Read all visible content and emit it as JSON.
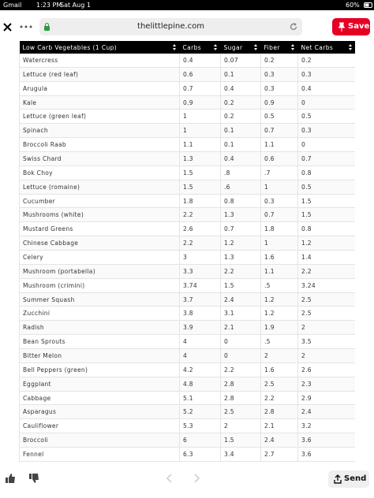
{
  "status_bar": {
    "back_app": "Gmail",
    "time": "1:23 PM",
    "date": "Sat Aug 1",
    "battery": "60%"
  },
  "browser": {
    "url": "thelittlepine.com",
    "save_button": "Save"
  },
  "table": {
    "headers": [
      "Low Carb Vegetables (1 Cup)",
      "Carbs",
      "Sugar",
      "Fiber",
      "Net Carbs"
    ],
    "rows": [
      [
        "Watercress",
        "0.4",
        "0.07",
        "0.2",
        "0.2"
      ],
      [
        "Lettuce (red leaf)",
        "0.6",
        "0.1",
        "0.3",
        "0.3"
      ],
      [
        "Arugula",
        "0.7",
        "0.4",
        "0.3",
        "0.4"
      ],
      [
        "Kale",
        "0.9",
        "0.2",
        "0.9",
        "0"
      ],
      [
        "Lettuce (green leaf)",
        "1",
        "0.2",
        "0.5",
        "0.5"
      ],
      [
        "Spinach",
        "1",
        "0.1",
        "0.7",
        "0.3"
      ],
      [
        "Broccoli Raab",
        "1.1",
        "0.1",
        "1.1",
        "0"
      ],
      [
        "Swiss Chard",
        "1.3",
        "0.4",
        "0.6",
        "0.7"
      ],
      [
        "Bok Choy",
        "1.5",
        ".8",
        ".7",
        "0.8"
      ],
      [
        "Lettuce (romaine)",
        "1.5",
        ".6",
        "1",
        "0.5"
      ],
      [
        "Cucumber",
        "1.8",
        "0.8",
        "0.3",
        "1.5"
      ],
      [
        "Mushrooms (white)",
        "2.2",
        "1.3",
        "0.7",
        "1.5"
      ],
      [
        "Mustard Greens",
        "2.6",
        "0.7",
        "1.8",
        "0.8"
      ],
      [
        "Chinese Cabbage",
        "2.2",
        "1.2",
        "1",
        "1.2"
      ],
      [
        "Celery",
        "3",
        "1.3",
        "1.6",
        "1.4"
      ],
      [
        "Mushroom (portabella)",
        "3.3",
        "2.2",
        "1.1",
        "2.2"
      ],
      [
        "Mushroom (crimini)",
        "3.74",
        "1.5",
        ".5",
        "3.24"
      ],
      [
        "Summer Squash",
        "3.7",
        "2.4",
        "1.2",
        "2.5"
      ],
      [
        "Zucchini",
        "3.8",
        "3.1",
        "1.2",
        "2.5"
      ],
      [
        "Radish",
        "3.9",
        "2.1",
        "1.9",
        "2"
      ],
      [
        "Bean Sprouts",
        "4",
        "0",
        ".5",
        "3.5"
      ],
      [
        "Bitter Melon",
        "4",
        "0",
        "2",
        "2"
      ],
      [
        "Bell Peppers (green)",
        "4.2",
        "2.2",
        "1.6",
        "2.6"
      ],
      [
        "Eggplant",
        "4.8",
        "2.8",
        "2.5",
        "2.3"
      ],
      [
        "Cabbage",
        "5.1",
        "2.8",
        "2.2",
        "2.9"
      ],
      [
        "Asparagus",
        "5.2",
        "2.5",
        "2.8",
        "2.4"
      ],
      [
        "Cauliflower",
        "5.3",
        "2",
        "2.1",
        "3.2"
      ],
      [
        "Broccoli",
        "6",
        "1.5",
        "2.4",
        "3.6"
      ],
      [
        "Fennel",
        "6.3",
        "3.4",
        "2.7",
        "3.6"
      ]
    ]
  },
  "bottom_bar": {
    "send_button": "Send"
  }
}
